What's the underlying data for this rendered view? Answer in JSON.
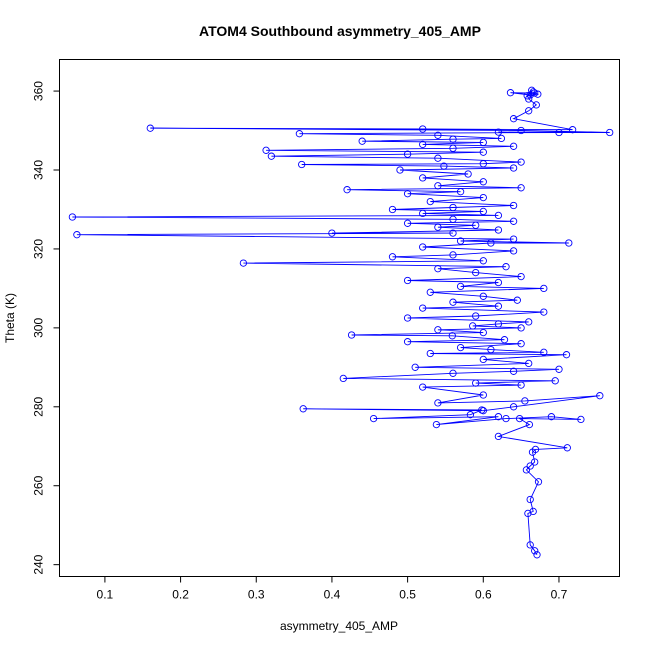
{
  "chart_data": {
    "type": "scatter",
    "title": "ATOM4 Southbound asymmetry_405_AMP",
    "xlabel": "asymmetry_405_AMP",
    "ylabel": "Theta (K)",
    "xlim": [
      0.04,
      0.78
    ],
    "ylim": [
      237,
      368
    ],
    "x_ticks": [
      0.1,
      0.2,
      0.3,
      0.4,
      0.5,
      0.6,
      0.7
    ],
    "y_ticks": [
      240,
      260,
      280,
      300,
      320,
      340,
      360
    ],
    "x_tick_labels": [
      "0.1",
      "0.2",
      "0.3",
      "0.4",
      "0.5",
      "0.6",
      "0.7"
    ],
    "y_tick_labels": [
      "240",
      "260",
      "280",
      "300",
      "320",
      "340",
      "360"
    ],
    "point_style": "open-circle",
    "connected": true,
    "color": "#0000ff",
    "grid": false,
    "series": [
      {
        "values": [
          [
            0.671,
            242.5
          ],
          [
            0.668,
            243.5
          ],
          [
            0.662,
            245.0
          ],
          [
            0.659,
            253.0
          ],
          [
            0.666,
            253.5
          ],
          [
            0.662,
            256.5
          ],
          [
            0.673,
            261.0
          ],
          [
            0.657,
            264.0
          ],
          [
            0.662,
            265.0
          ],
          [
            0.668,
            266.0
          ],
          [
            0.665,
            268.5
          ],
          [
            0.669,
            269.2
          ],
          [
            0.711,
            269.6
          ],
          [
            0.62,
            272.5
          ],
          [
            0.661,
            275.5
          ],
          [
            0.648,
            277.0
          ],
          [
            0.729,
            276.8
          ],
          [
            0.69,
            277.5
          ],
          [
            0.63,
            277.0
          ],
          [
            0.538,
            275.5
          ],
          [
            0.62,
            277.5
          ],
          [
            0.455,
            277.0
          ],
          [
            0.583,
            278.0
          ],
          [
            0.598,
            279.2
          ],
          [
            0.362,
            279.5
          ],
          [
            0.6,
            279.0
          ],
          [
            0.64,
            280.0
          ],
          [
            0.754,
            282.8
          ],
          [
            0.655,
            281.5
          ],
          [
            0.54,
            281.0
          ],
          [
            0.6,
            283.0
          ],
          [
            0.52,
            285.0
          ],
          [
            0.65,
            285.5
          ],
          [
            0.59,
            286.0
          ],
          [
            0.695,
            286.6
          ],
          [
            0.415,
            287.2
          ],
          [
            0.56,
            288.5
          ],
          [
            0.64,
            289.0
          ],
          [
            0.7,
            289.5
          ],
          [
            0.51,
            290.0
          ],
          [
            0.66,
            291.0
          ],
          [
            0.6,
            292.0
          ],
          [
            0.71,
            293.2
          ],
          [
            0.53,
            293.5
          ],
          [
            0.68,
            293.8
          ],
          [
            0.61,
            294.5
          ],
          [
            0.57,
            295.0
          ],
          [
            0.65,
            296.0
          ],
          [
            0.5,
            296.5
          ],
          [
            0.628,
            297.0
          ],
          [
            0.559,
            298.0
          ],
          [
            0.426,
            298.2
          ],
          [
            0.6,
            298.8
          ],
          [
            0.54,
            299.5
          ],
          [
            0.65,
            300.0
          ],
          [
            0.586,
            300.5
          ],
          [
            0.62,
            301.0
          ],
          [
            0.66,
            301.5
          ],
          [
            0.5,
            302.5
          ],
          [
            0.59,
            303.0
          ],
          [
            0.68,
            304.0
          ],
          [
            0.52,
            305.0
          ],
          [
            0.62,
            305.5
          ],
          [
            0.56,
            306.5
          ],
          [
            0.645,
            307.0
          ],
          [
            0.6,
            308.0
          ],
          [
            0.53,
            309.0
          ],
          [
            0.68,
            310.0
          ],
          [
            0.57,
            310.5
          ],
          [
            0.62,
            311.5
          ],
          [
            0.5,
            312.0
          ],
          [
            0.65,
            313.0
          ],
          [
            0.59,
            314.0
          ],
          [
            0.54,
            315.0
          ],
          [
            0.63,
            315.5
          ],
          [
            0.283,
            316.4
          ],
          [
            0.6,
            317.0
          ],
          [
            0.48,
            318.0
          ],
          [
            0.56,
            318.5
          ],
          [
            0.64,
            319.5
          ],
          [
            0.52,
            320.5
          ],
          [
            0.61,
            321.5
          ],
          [
            0.713,
            321.5
          ],
          [
            0.57,
            322.0
          ],
          [
            0.64,
            322.5
          ],
          [
            0.063,
            323.6
          ],
          [
            0.56,
            324.0
          ],
          [
            0.4,
            324.0
          ],
          [
            0.62,
            324.8
          ],
          [
            0.54,
            325.5
          ],
          [
            0.59,
            326.0
          ],
          [
            0.5,
            326.5
          ],
          [
            0.64,
            327.0
          ],
          [
            0.56,
            327.5
          ],
          [
            0.057,
            328.1
          ],
          [
            0.62,
            328.5
          ],
          [
            0.52,
            329.0
          ],
          [
            0.6,
            329.5
          ],
          [
            0.48,
            330.0
          ],
          [
            0.56,
            330.5
          ],
          [
            0.64,
            331.0
          ],
          [
            0.53,
            332.0
          ],
          [
            0.6,
            333.0
          ],
          [
            0.5,
            334.0
          ],
          [
            0.57,
            334.5
          ],
          [
            0.42,
            335.0
          ],
          [
            0.65,
            335.5
          ],
          [
            0.54,
            336.0
          ],
          [
            0.6,
            337.0
          ],
          [
            0.52,
            338.0
          ],
          [
            0.58,
            339.0
          ],
          [
            0.49,
            340.0
          ],
          [
            0.64,
            340.5
          ],
          [
            0.548,
            341.0
          ],
          [
            0.36,
            341.4
          ],
          [
            0.6,
            341.6
          ],
          [
            0.65,
            342.0
          ],
          [
            0.54,
            343.0
          ],
          [
            0.32,
            343.5
          ],
          [
            0.5,
            344.0
          ],
          [
            0.6,
            344.5
          ],
          [
            0.313,
            345.0
          ],
          [
            0.56,
            345.5
          ],
          [
            0.64,
            346.0
          ],
          [
            0.52,
            346.5
          ],
          [
            0.6,
            347.0
          ],
          [
            0.44,
            347.3
          ],
          [
            0.56,
            347.8
          ],
          [
            0.624,
            348.0
          ],
          [
            0.54,
            348.8
          ],
          [
            0.357,
            349.2
          ],
          [
            0.7,
            349.5
          ],
          [
            0.62,
            349.6
          ],
          [
            0.767,
            349.5
          ],
          [
            0.65,
            350.0
          ],
          [
            0.16,
            350.6
          ],
          [
            0.52,
            350.4
          ],
          [
            0.718,
            350.2
          ],
          [
            0.64,
            353.0
          ],
          [
            0.66,
            355.0
          ],
          [
            0.67,
            356.5
          ],
          [
            0.66,
            358.0
          ],
          [
            0.668,
            359.5
          ],
          [
            0.636,
            359.6
          ],
          [
            0.662,
            359.0
          ],
          [
            0.664,
            360.2
          ],
          [
            0.658,
            358.8
          ],
          [
            0.672,
            359.2
          ],
          [
            0.666,
            359.8
          ]
        ]
      }
    ]
  }
}
